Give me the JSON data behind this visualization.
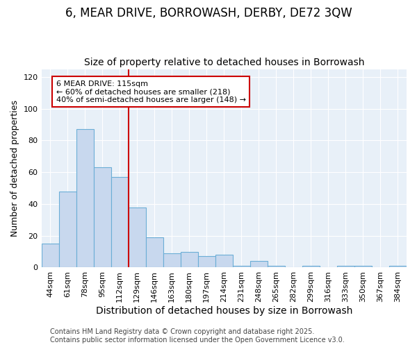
{
  "title": "6, MEAR DRIVE, BORROWASH, DERBY, DE72 3QW",
  "subtitle": "Size of property relative to detached houses in Borrowash",
  "xlabel": "Distribution of detached houses by size in Borrowash",
  "ylabel": "Number of detached properties",
  "bar_labels": [
    "44sqm",
    "61sqm",
    "78sqm",
    "95sqm",
    "112sqm",
    "129sqm",
    "146sqm",
    "163sqm",
    "180sqm",
    "197sqm",
    "214sqm",
    "231sqm",
    "248sqm",
    "265sqm",
    "282sqm",
    "299sqm",
    "316sqm",
    "333sqm",
    "350sqm",
    "367sqm",
    "384sqm"
  ],
  "bar_values": [
    15,
    48,
    87,
    63,
    57,
    38,
    19,
    9,
    10,
    7,
    8,
    1,
    4,
    1,
    0,
    1,
    0,
    1,
    1,
    0,
    1
  ],
  "bar_color": "#c8d8ee",
  "bar_edge_color": "#6baed6",
  "vline_color": "#cc0000",
  "annotation_title": "6 MEAR DRIVE: 115sqm",
  "annotation_line1": "← 60% of detached houses are smaller (218)",
  "annotation_line2": "40% of semi-detached houses are larger (148) →",
  "annotation_box_edgecolor": "#cc0000",
  "ylim": [
    0,
    125
  ],
  "yticks": [
    0,
    20,
    40,
    60,
    80,
    100,
    120
  ],
  "footer_line1": "Contains HM Land Registry data © Crown copyright and database right 2025.",
  "footer_line2": "Contains public sector information licensed under the Open Government Licence v3.0.",
  "bg_color": "#e8f0f8",
  "grid_color": "#ffffff",
  "title_fontsize": 12,
  "subtitle_fontsize": 10,
  "xlabel_fontsize": 10,
  "ylabel_fontsize": 9,
  "tick_fontsize": 8,
  "annot_fontsize": 8,
  "footer_fontsize": 7
}
